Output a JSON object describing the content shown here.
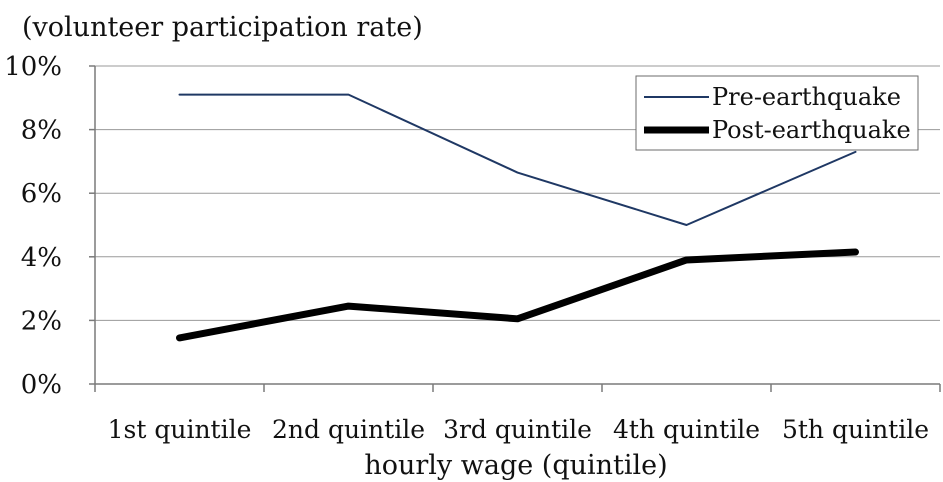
{
  "chart_data": {
    "type": "line",
    "title": "",
    "ylabel": "(volunteer participation rate)",
    "xlabel": "hourly wage (quintile)",
    "categories": [
      "1st quintile",
      "2nd quintile",
      "3rd quintile",
      "4th quintile",
      "5th quintile"
    ],
    "y_ticks": [
      "0%",
      "2%",
      "4%",
      "6%",
      "8%",
      "10%"
    ],
    "ylim": [
      0,
      10
    ],
    "grid": true,
    "legend_position": "top-right",
    "series": [
      {
        "name": "Pre-earthquake",
        "color": "#1f3864",
        "values": [
          9.1,
          9.1,
          6.65,
          5.0,
          7.3
        ]
      },
      {
        "name": "Post-earthquake",
        "color": "#000000",
        "values": [
          1.45,
          2.45,
          2.05,
          3.9,
          4.15
        ]
      }
    ]
  }
}
